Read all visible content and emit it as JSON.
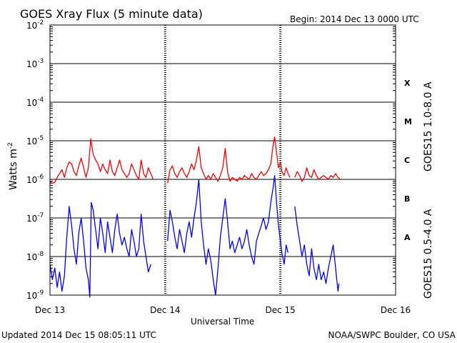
{
  "chart_data": {
    "type": "line",
    "title": "GOES Xray Flux (5 minute data)",
    "begin_label": "Begin:  2014 Dec 13 0000 UTC",
    "ylabel": "Watts m",
    "ylabel_sup": "-2",
    "xlabel": "Universal Time",
    "footer_left": "Updated 2014 Dec 15 08:05:11 UTC",
    "footer_right": "NOAA/SWPC Boulder, CO USA",
    "yscale": "log",
    "ylim": [
      1e-09,
      0.01
    ],
    "y_ticks": [
      {
        "exp": -2,
        "base": "10",
        "sup": "-2"
      },
      {
        "exp": -3,
        "base": "10",
        "sup": "-3"
      },
      {
        "exp": -4,
        "base": "10",
        "sup": "-4"
      },
      {
        "exp": -5,
        "base": "10",
        "sup": "-5"
      },
      {
        "exp": -6,
        "base": "10",
        "sup": "-6"
      },
      {
        "exp": -7,
        "base": "10",
        "sup": "-7"
      },
      {
        "exp": -8,
        "base": "10",
        "sup": "-8"
      },
      {
        "exp": -9,
        "base": "10",
        "sup": "-9"
      }
    ],
    "xlim": [
      0,
      72
    ],
    "x_ticks": [
      {
        "x": 0,
        "label": "Dec 13"
      },
      {
        "x": 24,
        "label": "Dec 14"
      },
      {
        "x": 48,
        "label": "Dec 15"
      },
      {
        "x": 72,
        "label": "Dec 16"
      }
    ],
    "flare_classes": [
      {
        "label": "X",
        "exp": -3.5
      },
      {
        "label": "M",
        "exp": -4.5
      },
      {
        "label": "C",
        "exp": -5.5
      },
      {
        "label": "B",
        "exp": -6.5
      },
      {
        "label": "A",
        "exp": -7.5
      }
    ],
    "grid": true,
    "series": [
      {
        "name": "GOES15 1.0-8.0 A",
        "color": "#ff0000",
        "segments": [
          [
            [
              0.0,
              -6.05
            ],
            [
              0.5,
              -6.1
            ],
            [
              1.0,
              -6.08
            ],
            [
              1.5,
              -5.95
            ],
            [
              2.0,
              -5.85
            ],
            [
              2.5,
              -5.75
            ],
            [
              3.0,
              -5.95
            ],
            [
              3.5,
              -5.7
            ],
            [
              4.0,
              -5.55
            ],
            [
              4.5,
              -5.6
            ],
            [
              5.0,
              -5.8
            ],
            [
              5.5,
              -5.9
            ],
            [
              6.0,
              -5.65
            ],
            [
              6.5,
              -5.45
            ],
            [
              7.0,
              -5.7
            ],
            [
              7.5,
              -5.95
            ],
            [
              8.0,
              -5.7
            ],
            [
              8.5,
              -4.95
            ],
            [
              9.0,
              -5.35
            ],
            [
              9.5,
              -5.5
            ],
            [
              10.0,
              -5.6
            ],
            [
              10.5,
              -5.8
            ],
            [
              11.0,
              -5.6
            ],
            [
              11.5,
              -5.75
            ],
            [
              12.0,
              -5.85
            ],
            [
              12.5,
              -5.5
            ],
            [
              13.0,
              -5.8
            ],
            [
              13.5,
              -5.9
            ],
            [
              14.0,
              -5.7
            ],
            [
              14.5,
              -5.5
            ],
            [
              15.0,
              -5.75
            ],
            [
              15.5,
              -5.85
            ],
            [
              16.0,
              -5.95
            ],
            [
              16.5,
              -5.85
            ],
            [
              17.0,
              -5.6
            ],
            [
              17.5,
              -5.75
            ],
            [
              18.0,
              -5.9
            ],
            [
              18.5,
              -6.0
            ],
            [
              19.0,
              -5.5
            ],
            [
              19.5,
              -5.85
            ],
            [
              20.0,
              -5.95
            ],
            [
              20.5,
              -5.7
            ],
            [
              21.0,
              -5.85
            ],
            [
              21.5,
              -6.0
            ]
          ],
          [
            [
              24.5,
              -6.1
            ],
            [
              25.0,
              -5.75
            ],
            [
              25.5,
              -5.65
            ],
            [
              26.0,
              -5.85
            ],
            [
              26.5,
              -5.95
            ],
            [
              27.0,
              -5.8
            ],
            [
              27.5,
              -5.7
            ],
            [
              28.0,
              -5.85
            ],
            [
              28.5,
              -5.95
            ],
            [
              29.0,
              -5.8
            ],
            [
              29.5,
              -5.6
            ],
            [
              30.0,
              -5.75
            ],
            [
              30.5,
              -5.5
            ],
            [
              31.0,
              -5.15
            ],
            [
              31.5,
              -5.7
            ],
            [
              32.0,
              -5.85
            ],
            [
              32.5,
              -6.0
            ],
            [
              33.0,
              -5.9
            ],
            [
              33.5,
              -6.0
            ],
            [
              34.0,
              -5.85
            ],
            [
              34.5,
              -5.95
            ],
            [
              35.0,
              -6.05
            ],
            [
              35.5,
              -5.9
            ],
            [
              36.0,
              -5.7
            ],
            [
              36.5,
              -5.2
            ],
            [
              37.0,
              -5.8
            ],
            [
              37.5,
              -6.05
            ],
            [
              38.0,
              -5.95
            ],
            [
              38.5,
              -6.0
            ],
            [
              39.0,
              -6.05
            ],
            [
              39.5,
              -5.95
            ],
            [
              40.0,
              -6.0
            ],
            [
              40.5,
              -5.9
            ],
            [
              41.0,
              -5.95
            ],
            [
              41.5,
              -6.0
            ],
            [
              42.0,
              -5.85
            ],
            [
              42.5,
              -5.95
            ],
            [
              43.0,
              -6.0
            ],
            [
              43.5,
              -5.9
            ],
            [
              44.0,
              -5.8
            ],
            [
              44.5,
              -5.9
            ],
            [
              45.0,
              -5.85
            ],
            [
              45.5,
              -5.75
            ],
            [
              46.0,
              -5.6
            ],
            [
              46.5,
              -5.1
            ],
            [
              46.8,
              -4.9
            ],
            [
              47.2,
              -5.3
            ],
            [
              47.6,
              -5.7
            ],
            [
              48.0,
              -5.55
            ],
            [
              48.3,
              -5.8
            ],
            [
              48.8,
              -5.9
            ],
            [
              49.2,
              -5.7
            ],
            [
              49.6,
              -5.85
            ],
            [
              50.0,
              -5.95
            ]
          ],
          [
            [
              51.0,
              -5.95
            ],
            [
              51.5,
              -5.8
            ],
            [
              52.0,
              -5.9
            ],
            [
              52.5,
              -6.05
            ],
            [
              53.0,
              -5.95
            ],
            [
              53.5,
              -5.7
            ],
            [
              54.0,
              -5.9
            ],
            [
              54.5,
              -5.95
            ],
            [
              55.0,
              -5.75
            ],
            [
              55.5,
              -5.9
            ],
            [
              56.0,
              -6.0
            ],
            [
              56.5,
              -5.95
            ],
            [
              57.0,
              -5.9
            ],
            [
              57.5,
              -5.95
            ],
            [
              58.0,
              -6.0
            ],
            [
              58.5,
              -5.9
            ],
            [
              59.0,
              -5.95
            ],
            [
              59.5,
              -5.85
            ],
            [
              60.0,
              -5.95
            ],
            [
              60.5,
              -6.0
            ]
          ]
        ]
      },
      {
        "name": "GOES15 0.5-4.0 A",
        "color": "#0000ff",
        "segments": [
          [
            [
              0.0,
              -8.2
            ],
            [
              0.5,
              -8.6
            ],
            [
              1.0,
              -8.3
            ],
            [
              1.5,
              -8.8
            ],
            [
              2.0,
              -8.4
            ],
            [
              2.5,
              -8.9
            ],
            [
              3.0,
              -8.5
            ],
            [
              3.5,
              -7.5
            ],
            [
              4.0,
              -6.7
            ],
            [
              4.5,
              -7.2
            ],
            [
              5.0,
              -7.8
            ],
            [
              5.5,
              -8.2
            ],
            [
              6.0,
              -7.4
            ],
            [
              6.5,
              -7.0
            ],
            [
              7.0,
              -7.6
            ],
            [
              7.5,
              -8.3
            ],
            [
              8.0,
              -8.6
            ],
            [
              8.3,
              -9.05
            ],
            [
              8.6,
              -6.6
            ],
            [
              9.0,
              -6.8
            ],
            [
              9.5,
              -7.3
            ],
            [
              10.0,
              -7.8
            ],
            [
              10.5,
              -7.0
            ],
            [
              11.0,
              -7.4
            ],
            [
              11.5,
              -7.9
            ],
            [
              12.0,
              -7.1
            ],
            [
              12.5,
              -7.5
            ],
            [
              13.0,
              -7.9
            ],
            [
              13.5,
              -7.3
            ],
            [
              14.0,
              -6.9
            ],
            [
              14.5,
              -7.4
            ],
            [
              15.0,
              -7.7
            ],
            [
              15.5,
              -7.5
            ],
            [
              16.0,
              -7.8
            ],
            [
              16.5,
              -8.0
            ],
            [
              17.0,
              -7.3
            ],
            [
              17.5,
              -7.6
            ],
            [
              18.0,
              -8.0
            ],
            [
              18.5,
              -7.8
            ],
            [
              19.0,
              -6.9
            ],
            [
              19.5,
              -7.6
            ],
            [
              20.0,
              -8.0
            ],
            [
              20.5,
              -8.4
            ],
            [
              21.0,
              -8.2
            ]
          ],
          [
            [
              24.5,
              -7.6
            ],
            [
              25.0,
              -6.8
            ],
            [
              25.5,
              -7.1
            ],
            [
              26.0,
              -7.5
            ],
            [
              26.5,
              -7.8
            ],
            [
              27.0,
              -7.3
            ],
            [
              27.5,
              -7.6
            ],
            [
              28.0,
              -7.9
            ],
            [
              28.5,
              -7.4
            ],
            [
              29.0,
              -7.1
            ],
            [
              29.5,
              -7.5
            ],
            [
              30.0,
              -7.0
            ],
            [
              30.5,
              -6.6
            ],
            [
              31.0,
              -6.0
            ],
            [
              31.5,
              -7.1
            ],
            [
              32.0,
              -7.7
            ],
            [
              32.5,
              -8.2
            ],
            [
              33.0,
              -7.8
            ],
            [
              33.5,
              -8.1
            ],
            [
              34.0,
              -8.6
            ],
            [
              34.5,
              -9.0
            ],
            [
              35.0,
              -8.3
            ],
            [
              35.5,
              -7.5
            ],
            [
              36.0,
              -7.0
            ],
            [
              36.5,
              -6.5
            ],
            [
              37.0,
              -7.1
            ],
            [
              37.5,
              -7.8
            ],
            [
              38.0,
              -7.6
            ],
            [
              38.5,
              -7.9
            ],
            [
              39.0,
              -7.7
            ],
            [
              39.5,
              -7.5
            ],
            [
              40.0,
              -7.8
            ],
            [
              40.5,
              -7.6
            ],
            [
              41.0,
              -7.3
            ],
            [
              41.5,
              -7.7
            ],
            [
              42.0,
              -8.0
            ],
            [
              42.5,
              -8.2
            ],
            [
              43.0,
              -7.6
            ],
            [
              43.5,
              -7.4
            ],
            [
              44.0,
              -7.2
            ],
            [
              44.5,
              -7.0
            ],
            [
              45.0,
              -7.3
            ],
            [
              45.5,
              -7.1
            ],
            [
              46.0,
              -6.6
            ],
            [
              46.5,
              -6.2
            ],
            [
              46.8,
              -5.9
            ],
            [
              47.2,
              -6.6
            ],
            [
              47.6,
              -7.2
            ],
            [
              48.0,
              -7.6
            ],
            [
              48.3,
              -7.9
            ],
            [
              48.8,
              -8.2
            ],
            [
              49.2,
              -7.7
            ],
            [
              49.6,
              -7.9
            ]
          ],
          [
            [
              51.0,
              -6.7
            ],
            [
              51.5,
              -7.2
            ],
            [
              52.0,
              -7.6
            ],
            [
              52.5,
              -8.0
            ],
            [
              53.0,
              -7.7
            ],
            [
              53.5,
              -8.2
            ],
            [
              54.0,
              -8.5
            ],
            [
              54.5,
              -7.8
            ],
            [
              55.0,
              -8.3
            ],
            [
              55.5,
              -8.6
            ],
            [
              56.0,
              -8.2
            ],
            [
              56.5,
              -8.6
            ],
            [
              57.0,
              -8.4
            ],
            [
              57.5,
              -8.7
            ],
            [
              58.0,
              -8.3
            ],
            [
              58.5,
              -8.0
            ],
            [
              59.0,
              -7.7
            ],
            [
              59.5,
              -8.3
            ],
            [
              60.0,
              -8.9
            ],
            [
              60.2,
              -8.7
            ]
          ]
        ]
      }
    ]
  }
}
